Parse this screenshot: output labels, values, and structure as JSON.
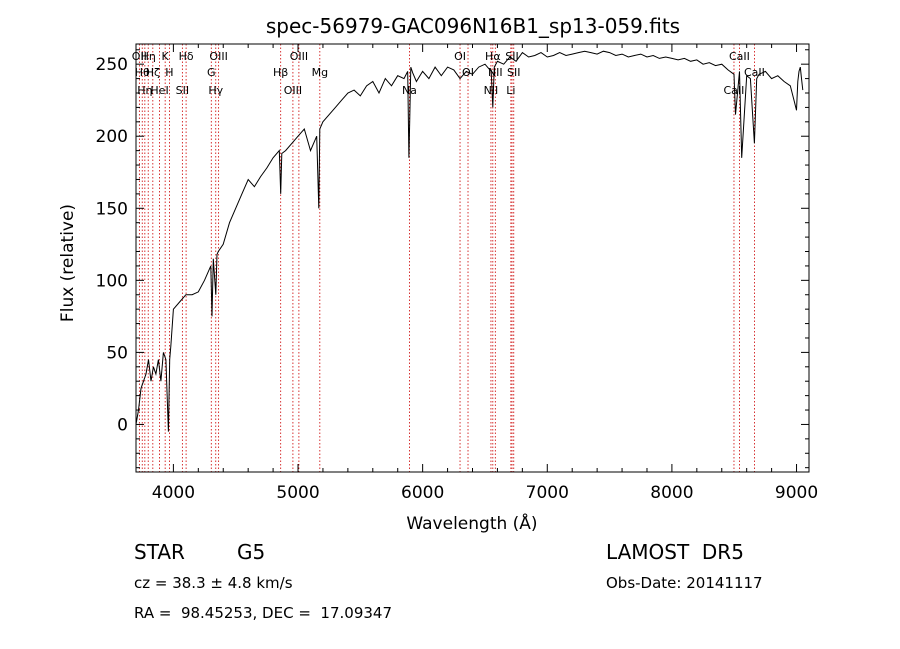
{
  "chart_data": {
    "type": "line",
    "title": "spec-56979-GAC096N16B1_sp13-059.fits",
    "xlabel": "Wavelength (Å)",
    "ylabel": "Flux (relative)",
    "xlim": [
      3700,
      9100
    ],
    "ylim": [
      -33,
      264
    ],
    "xticks": [
      4000,
      5000,
      6000,
      7000,
      8000,
      9000
    ],
    "yticks": [
      0,
      50,
      100,
      150,
      200,
      250
    ],
    "grid": false,
    "series": [
      {
        "x": [
          3700,
          3720,
          3740,
          3760,
          3780,
          3800,
          3820,
          3840,
          3860,
          3880,
          3900,
          3920,
          3940,
          3960,
          3970,
          3980,
          4000,
          4050,
          4100,
          4150,
          4200,
          4250,
          4300,
          4310,
          4320,
          4340,
          4350,
          4360,
          4400,
          4450,
          4500,
          4550,
          4600,
          4650,
          4700,
          4750,
          4800,
          4850,
          4861,
          4870,
          4900,
          4950,
          5000,
          5050,
          5100,
          5150,
          5167,
          5175,
          5200,
          5250,
          5300,
          5350,
          5400,
          5450,
          5500,
          5550,
          5600,
          5650,
          5700,
          5750,
          5800,
          5850,
          5880,
          5890,
          5896,
          5905,
          5920,
          5950,
          6000,
          6050,
          6100,
          6150,
          6200,
          6250,
          6300,
          6350,
          6400,
          6450,
          6500,
          6550,
          6563,
          6575,
          6600,
          6650,
          6700,
          6750,
          6800,
          6850,
          6900,
          6950,
          7000,
          7050,
          7100,
          7150,
          7200,
          7250,
          7300,
          7350,
          7400,
          7450,
          7500,
          7550,
          7600,
          7650,
          7700,
          7750,
          7800,
          7850,
          7900,
          7950,
          8000,
          8050,
          8100,
          8150,
          8200,
          8250,
          8300,
          8350,
          8400,
          8450,
          8498,
          8510,
          8542,
          8560,
          8600,
          8630,
          8662,
          8680,
          8700,
          8750,
          8800,
          8850,
          8900,
          8950,
          8980,
          9000,
          9010,
          9020,
          9030,
          9040,
          9050
        ],
        "y": [
          0,
          10,
          25,
          30,
          35,
          45,
          30,
          40,
          35,
          45,
          30,
          50,
          45,
          -5,
          45,
          55,
          80,
          85,
          90,
          90,
          92,
          100,
          110,
          75,
          115,
          90,
          118,
          120,
          125,
          140,
          150,
          160,
          170,
          165,
          172,
          178,
          185,
          190,
          160,
          188,
          190,
          195,
          200,
          205,
          190,
          200,
          150,
          205,
          210,
          215,
          220,
          225,
          230,
          232,
          228,
          235,
          238,
          230,
          240,
          235,
          242,
          240,
          245,
          185,
          210,
          248,
          244,
          238,
          245,
          240,
          248,
          242,
          248,
          246,
          240,
          245,
          243,
          248,
          250,
          245,
          220,
          248,
          252,
          250,
          255,
          252,
          258,
          255,
          256,
          258,
          255,
          256,
          258,
          256,
          257,
          258,
          259,
          258,
          257,
          259,
          258,
          256,
          257,
          255,
          256,
          257,
          255,
          256,
          254,
          255,
          254,
          253,
          254,
          252,
          253,
          250,
          251,
          249,
          250,
          246,
          243,
          215,
          245,
          185,
          242,
          240,
          195,
          240,
          243,
          245,
          240,
          242,
          238,
          235,
          225,
          218,
          238,
          245,
          248,
          240,
          232
        ]
      }
    ],
    "lines": [
      {
        "wl": 3727,
        "label": "OII"
      },
      {
        "wl": 3750,
        "label": "Hθ"
      },
      {
        "wl": 3771,
        "label": "Hη"
      },
      {
        "wl": 3798,
        "label": "Hη"
      },
      {
        "wl": 3835,
        "label": "Hζ"
      },
      {
        "wl": 3889,
        "label": "HeI"
      },
      {
        "wl": 3934,
        "label": "K"
      },
      {
        "wl": 3968,
        "label": "H"
      },
      {
        "wl": 4072,
        "label": "SII"
      },
      {
        "wl": 4102,
        "label": "Hδ"
      },
      {
        "wl": 4304,
        "label": "G"
      },
      {
        "wl": 4340,
        "label": "Hγ"
      },
      {
        "wl": 4363,
        "label": "OIII"
      },
      {
        "wl": 4861,
        "label": "Hβ"
      },
      {
        "wl": 4959,
        "label": "OIII"
      },
      {
        "wl": 5007,
        "label": "OIII"
      },
      {
        "wl": 5175,
        "label": "Mg"
      },
      {
        "wl": 5894,
        "label": "Na"
      },
      {
        "wl": 6300,
        "label": "OI"
      },
      {
        "wl": 6364,
        "label": "OI"
      },
      {
        "wl": 6548,
        "label": "NII"
      },
      {
        "wl": 6563,
        "label": "Hα"
      },
      {
        "wl": 6583,
        "label": "NII"
      },
      {
        "wl": 6708,
        "label": "Li"
      },
      {
        "wl": 6717,
        "label": "SII"
      },
      {
        "wl": 6731,
        "label": "SII"
      },
      {
        "wl": 8498,
        "label": "CaII"
      },
      {
        "wl": 8542,
        "label": "CaII"
      },
      {
        "wl": 8662,
        "label": "CaII"
      }
    ]
  },
  "info": {
    "obj_class": "STAR",
    "subclass": "G5",
    "survey": "LAMOST  DR5",
    "cz": "cz = 38.3 ± 4.8 km/s",
    "obs_date": "Obs-Date: 20141117",
    "radec": "RA =  98.45253, DEC =  17.09347"
  },
  "colors": {
    "axis": "#000000",
    "spectrum": "#000000",
    "line_markers": "#cc0000"
  }
}
